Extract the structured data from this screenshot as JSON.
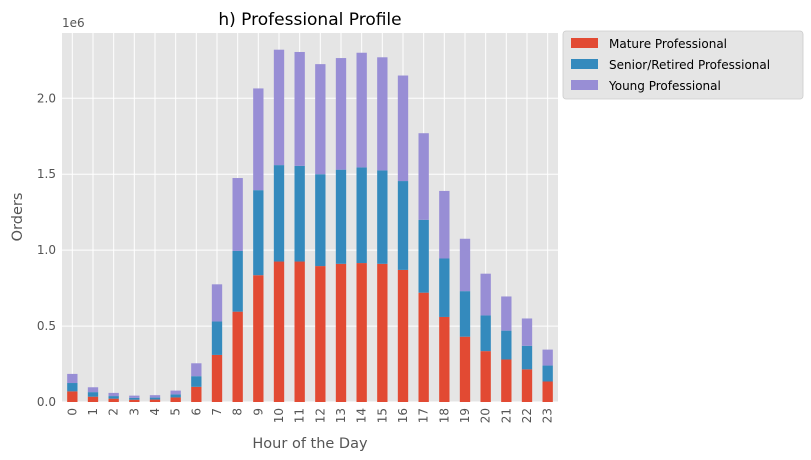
{
  "chart_data": {
    "type": "bar",
    "stacked": true,
    "title": "h) Professional Profile",
    "xlabel": "Hour of the Day",
    "ylabel": "Orders",
    "y_scale_note": "1e6",
    "categories": [
      "0",
      "1",
      "2",
      "3",
      "4",
      "5",
      "6",
      "7",
      "8",
      "9",
      "10",
      "11",
      "12",
      "13",
      "14",
      "15",
      "16",
      "17",
      "18",
      "19",
      "20",
      "21",
      "22",
      "23"
    ],
    "series": [
      {
        "name": "Mature Professional",
        "color": "#E24A33",
        "values": [
          70000,
          35000,
          22000,
          15000,
          16000,
          30000,
          100000,
          310000,
          595000,
          835000,
          925000,
          925000,
          895000,
          910000,
          915000,
          910000,
          870000,
          720000,
          560000,
          430000,
          335000,
          280000,
          215000,
          135000
        ]
      },
      {
        "name": "Senior/Retired Professional",
        "color": "#348ABD",
        "values": [
          55000,
          30000,
          17000,
          12000,
          13000,
          20000,
          70000,
          220000,
          400000,
          560000,
          635000,
          630000,
          605000,
          620000,
          630000,
          615000,
          585000,
          480000,
          385000,
          300000,
          235000,
          190000,
          155000,
          105000
        ]
      },
      {
        "name": "Young Professional",
        "color": "#988ED5",
        "values": [
          60000,
          32000,
          21000,
          15000,
          16000,
          25000,
          85000,
          245000,
          480000,
          670000,
          760000,
          750000,
          725000,
          735000,
          755000,
          745000,
          695000,
          570000,
          445000,
          345000,
          275000,
          225000,
          180000,
          105000
        ]
      }
    ],
    "ylim": [
      0,
      2430000
    ],
    "yticks": [
      0,
      500000,
      1000000,
      1500000,
      2000000
    ],
    "ytick_labels": [
      "0.0",
      "0.5",
      "1.0",
      "1.5",
      "2.0"
    ],
    "grid": true,
    "legend_position": "outside-upper-right"
  }
}
